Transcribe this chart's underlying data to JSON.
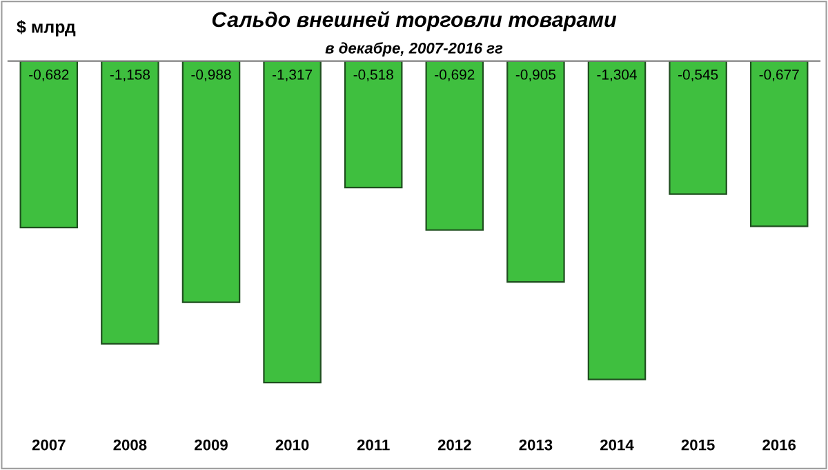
{
  "chart_data": {
    "type": "bar",
    "title": "Сальдо внешней торговли товарами",
    "subtitle": "в декабре, 2007-2016 гг",
    "ylabel": "$ млрд",
    "categories": [
      "2007",
      "2008",
      "2009",
      "2010",
      "2011",
      "2012",
      "2013",
      "2014",
      "2015",
      "2016"
    ],
    "values": [
      -0.682,
      -1.158,
      -0.988,
      -1.317,
      -0.518,
      -0.692,
      -0.905,
      -1.304,
      -0.545,
      -0.677
    ],
    "value_labels": [
      "-0,682",
      "-1,158",
      "-0,988",
      "-1,317",
      "-0,518",
      "-0,692",
      "-0,905",
      "-1,304",
      "-0,545",
      "-0,677"
    ],
    "color": "#3fbf3f",
    "grid": false,
    "legend": false,
    "tick_labels": "x"
  }
}
